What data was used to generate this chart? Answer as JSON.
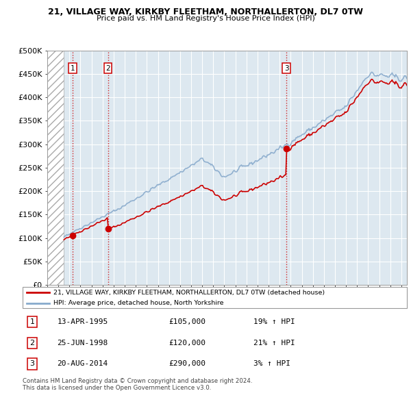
{
  "title1": "21, VILLAGE WAY, KIRKBY FLEETHAM, NORTHALLERTON, DL7 0TW",
  "title2": "Price paid vs. HM Land Registry's House Price Index (HPI)",
  "ylim": [
    0,
    500000
  ],
  "yticks": [
    0,
    50000,
    100000,
    150000,
    200000,
    250000,
    300000,
    350000,
    400000,
    450000,
    500000
  ],
  "ytick_labels": [
    "£0",
    "£50K",
    "£100K",
    "£150K",
    "£200K",
    "£250K",
    "£300K",
    "£350K",
    "£400K",
    "£450K",
    "£500K"
  ],
  "sale_dates": [
    1995.28,
    1998.48,
    2014.63
  ],
  "sale_prices": [
    105000,
    120000,
    290000
  ],
  "sale_labels": [
    "1",
    "2",
    "3"
  ],
  "line_color_red": "#cc0000",
  "hpi_line_color": "#88aacc",
  "marker_color": "#cc0000",
  "legend_label_red": "21, VILLAGE WAY, KIRKBY FLEETHAM, NORTHALLERTON, DL7 0TW (detached house)",
  "legend_label_blue": "HPI: Average price, detached house, North Yorkshire",
  "table_data": [
    [
      "1",
      "13-APR-1995",
      "£105,000",
      "19% ↑ HPI"
    ],
    [
      "2",
      "25-JUN-1998",
      "£120,000",
      "21% ↑ HPI"
    ],
    [
      "3",
      "20-AUG-2014",
      "£290,000",
      "3% ↑ HPI"
    ]
  ],
  "footnote": "Contains HM Land Registry data © Crown copyright and database right 2024.\nThis data is licensed under the Open Government Licence v3.0.",
  "plot_bg": "#dde8f0",
  "hatch_end": 1994.5,
  "xlim_start": 1993.0,
  "xlim_end": 2025.5
}
